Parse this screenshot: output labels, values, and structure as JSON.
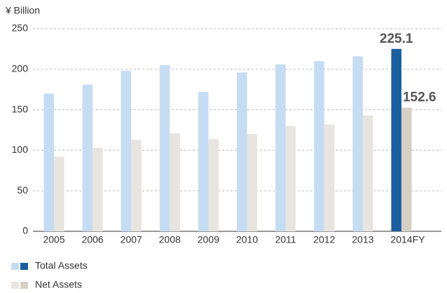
{
  "chart_data": {
    "type": "bar",
    "y_axis_label": "¥ Billion",
    "categories": [
      "2005",
      "2006",
      "2007",
      "2008",
      "2009",
      "2010",
      "2011",
      "2012",
      "2013",
      "2014FY"
    ],
    "series": [
      {
        "name": "Total Assets",
        "color": "#c5dcf3",
        "highlight_color": "#1a5e9e",
        "colors": [
          "#c5dcf3",
          "#c5dcf3",
          "#c5dcf3",
          "#c5dcf3",
          "#c5dcf3",
          "#c5dcf3",
          "#c5dcf3",
          "#c5dcf3",
          "#c5dcf3",
          "#1a5e9e"
        ],
        "values": [
          170,
          181,
          198,
          205,
          172,
          196,
          206,
          210,
          216,
          225.1
        ],
        "value_labels": [
          null,
          null,
          null,
          null,
          null,
          null,
          null,
          null,
          null,
          "225.1"
        ]
      },
      {
        "name": "Net Assets",
        "color": "#e8e4df",
        "highlight_color": "#d6cfc6",
        "colors": [
          "#e8e4df",
          "#e8e4df",
          "#e8e4df",
          "#e8e4df",
          "#e8e4df",
          "#e8e4df",
          "#e8e4df",
          "#e8e4df",
          "#e8e4df",
          "#d6cfc6"
        ],
        "values": [
          92,
          103,
          113,
          121,
          114,
          120,
          130,
          132,
          143,
          152.6
        ],
        "value_labels": [
          null,
          null,
          null,
          null,
          null,
          null,
          null,
          null,
          null,
          "152.6"
        ]
      }
    ],
    "ylim": [
      0,
      250
    ],
    "yticks": [
      0,
      50,
      100,
      150,
      200,
      250
    ],
    "grid": true
  }
}
